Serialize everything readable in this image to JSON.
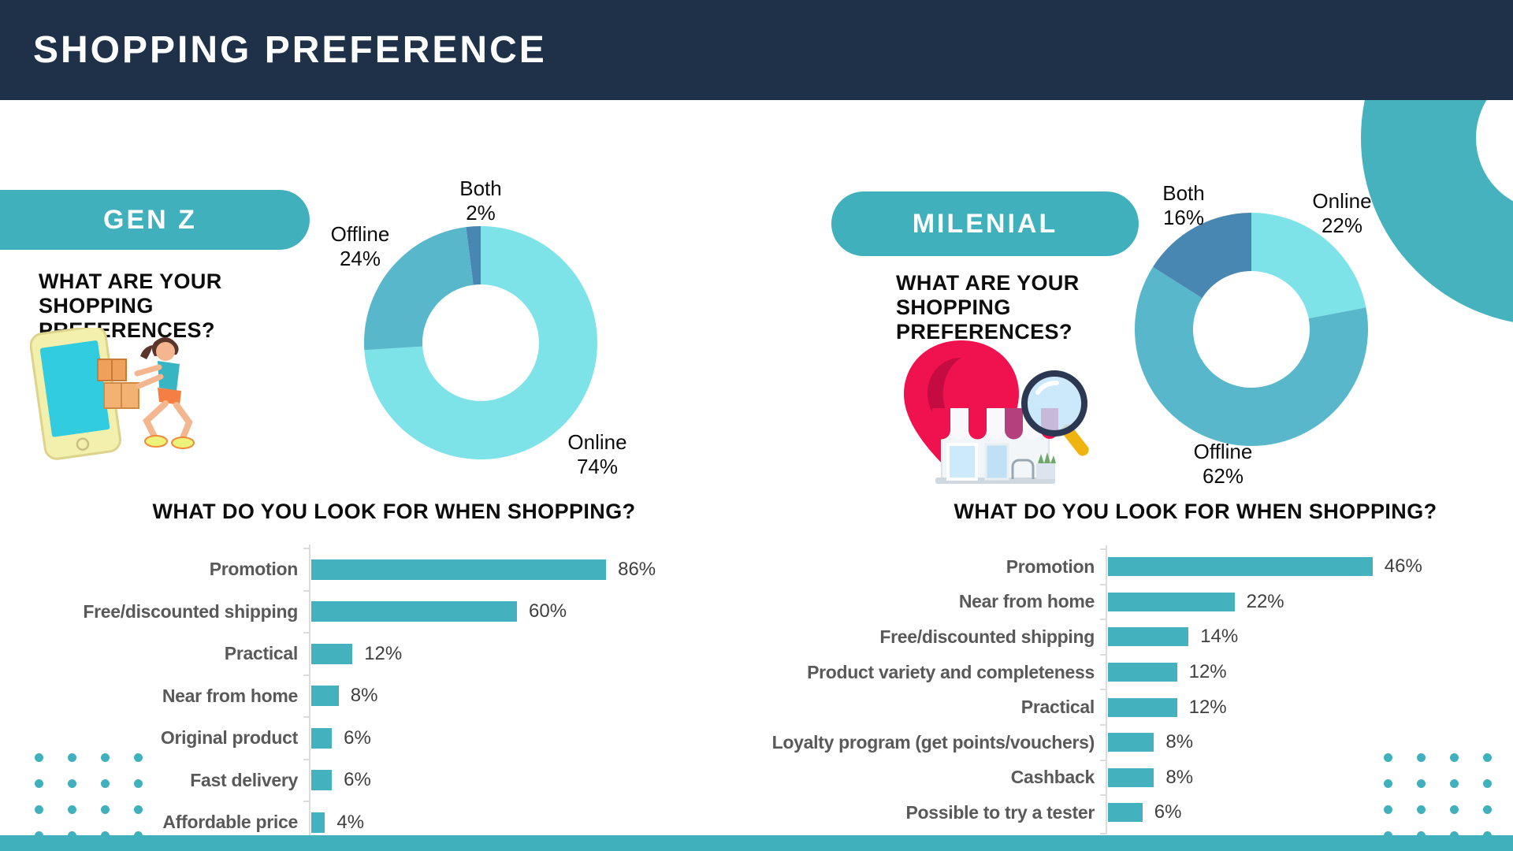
{
  "header": {
    "title": "SHOPPING PREFERENCE"
  },
  "colors": {
    "header_bg": "#1F3148",
    "accent_teal": "#41B0BD",
    "donut_online": "#7DE3E8",
    "donut_offline": "#58B7CB",
    "donut_both": "#4787B2",
    "bar_fill": "#44B1BE",
    "category_label_gray": "#595959",
    "value_label_gray": "#3F3F3F",
    "axis_gray": "#DCDCDC",
    "pin_pink": "#F0114F"
  },
  "genz": {
    "badge": "GEN Z",
    "preferences_question": "WHAT ARE YOUR SHOPPING PREFERENCES?",
    "shopping_question": "WHAT DO YOU LOOK FOR WHEN SHOPPING?"
  },
  "milenial": {
    "badge": "MILENIAL",
    "preferences_question": "WHAT ARE YOUR SHOPPING PREFERENCES?",
    "shopping_question": "WHAT DO YOU LOOK FOR WHEN SHOPPING?"
  },
  "chart_data": [
    {
      "id": "genz-shopping-preferences",
      "type": "pie",
      "subtype": "donut",
      "labels": [
        "Online",
        "Offline",
        "Both"
      ],
      "values": [
        74,
        24,
        2
      ],
      "unit": "%",
      "colors": [
        "#7DE3E8",
        "#58B7CB",
        "#4787B2"
      ],
      "start_angle": "12-oclock-clockwise",
      "callouts": [
        {
          "label": "Online",
          "value": "74%"
        },
        {
          "label": "Offline",
          "value": "24%"
        },
        {
          "label": "Both",
          "value": "2%"
        }
      ]
    },
    {
      "id": "genz-shopping-factors",
      "type": "bar",
      "orientation": "horizontal",
      "categories": [
        "Promotion",
        "Free/discounted shipping",
        "Practical",
        "Near from home",
        "Original product",
        "Fast delivery",
        "Affordable price"
      ],
      "values": [
        86,
        60,
        12,
        8,
        6,
        6,
        4
      ],
      "value_labels": [
        "86%",
        "60%",
        "12%",
        "8%",
        "6%",
        "6%",
        "4%"
      ],
      "xlim": [
        0,
        100
      ],
      "bar_color": "#44B1BE"
    },
    {
      "id": "milenial-shopping-preferences",
      "type": "pie",
      "subtype": "donut",
      "labels": [
        "Online",
        "Offline",
        "Both"
      ],
      "values": [
        22,
        62,
        16
      ],
      "unit": "%",
      "colors": [
        "#7DE3E8",
        "#58B7CB",
        "#4787B2"
      ],
      "start_angle": "12-oclock-clockwise",
      "callouts": [
        {
          "label": "Online",
          "value": "22%"
        },
        {
          "label": "Offline",
          "value": "62%"
        },
        {
          "label": "Both",
          "value": "16%"
        }
      ]
    },
    {
      "id": "milenial-shopping-factors",
      "type": "bar",
      "orientation": "horizontal",
      "categories": [
        "Promotion",
        "Near from home",
        "Free/discounted shipping",
        "Product variety and completeness",
        "Practical",
        "Loyalty program (get points/vouchers)",
        "Cashback",
        "Possible to try a tester"
      ],
      "values": [
        46,
        22,
        14,
        12,
        12,
        8,
        8,
        6
      ],
      "value_labels": [
        "46%",
        "22%",
        "14%",
        "12%",
        "12%",
        "8%",
        "8%",
        "6%"
      ],
      "xlim": [
        0,
        100
      ],
      "bar_color": "#44B1BE"
    }
  ]
}
